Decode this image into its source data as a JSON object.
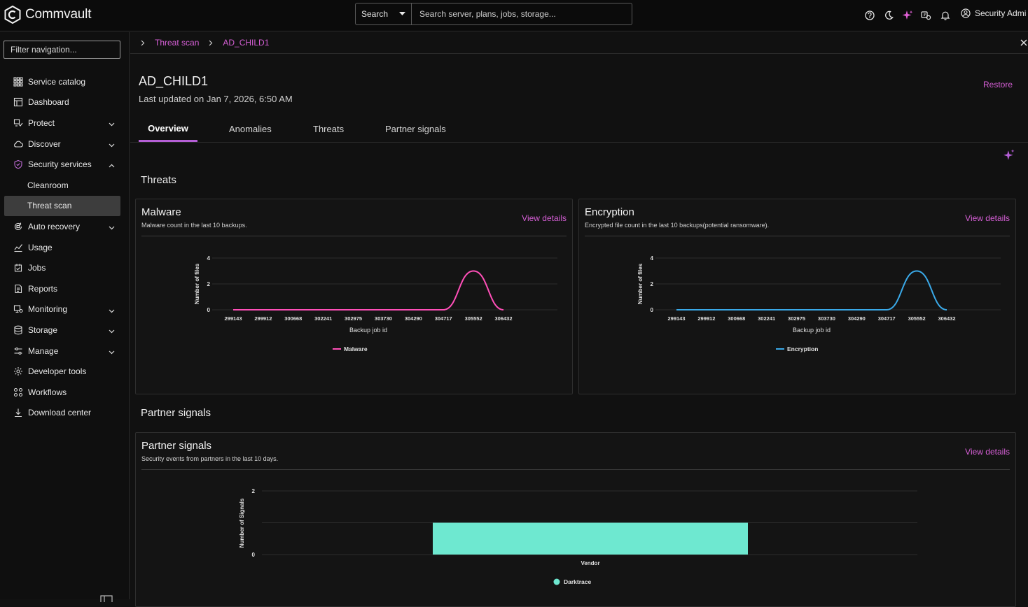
{
  "header": {
    "brand": "Commvault",
    "search_scope": "Search",
    "search_placeholder": "Search server, plans, jobs, storage...",
    "user_name": "Security Admi",
    "icons": [
      "help-icon",
      "moon-icon",
      "sparkle-icon",
      "ticket-icon",
      "bell-icon",
      "user-icon"
    ],
    "accent_color": "#d65fd6"
  },
  "sidebar": {
    "filter_placeholder": "Filter navigation...",
    "items": [
      {
        "label": "Service catalog",
        "icon": "grid-icon",
        "expandable": false
      },
      {
        "label": "Dashboard",
        "icon": "dashboard-icon",
        "expandable": false
      },
      {
        "label": "Protect",
        "icon": "protect-icon",
        "expandable": true
      },
      {
        "label": "Discover",
        "icon": "cloud-icon",
        "expandable": true
      },
      {
        "label": "Security services",
        "icon": "shield-icon",
        "expandable": true,
        "expanded": true
      },
      {
        "label": "Cleanroom",
        "sub": true
      },
      {
        "label": "Threat scan",
        "sub": true,
        "active": true
      },
      {
        "label": "Auto recovery",
        "icon": "recovery-icon",
        "expandable": true
      },
      {
        "label": "Usage",
        "icon": "chart-icon",
        "expandable": false
      },
      {
        "label": "Jobs",
        "icon": "jobs-icon",
        "expandable": false
      },
      {
        "label": "Reports",
        "icon": "reports-icon",
        "expandable": false
      },
      {
        "label": "Monitoring",
        "icon": "monitoring-icon",
        "expandable": true
      },
      {
        "label": "Storage",
        "icon": "storage-icon",
        "expandable": true
      },
      {
        "label": "Manage",
        "icon": "manage-icon",
        "expandable": true
      },
      {
        "label": "Developer tools",
        "icon": "gear-icon",
        "expandable": false
      },
      {
        "label": "Workflows",
        "icon": "workflow-icon",
        "expandable": false
      },
      {
        "label": "Download center",
        "icon": "download-icon",
        "expandable": false
      }
    ]
  },
  "breadcrumb": {
    "items": [
      "Threat scan",
      "AD_CHILD1"
    ]
  },
  "page": {
    "title": "AD_CHILD1",
    "subtitle": "Last updated on Jan 7, 2026, 6:50 AM",
    "restore_label": "Restore",
    "tabs": [
      "Overview",
      "Anomalies",
      "Threats",
      "Partner signals"
    ],
    "active_tab": "Overview"
  },
  "threats_section": {
    "title": "Threats"
  },
  "malware_card": {
    "title": "Malware",
    "subtitle": "Malware count in the last 10 backups.",
    "link": "View details"
  },
  "encryption_card": {
    "title": "Encryption",
    "subtitle": "Encrypted file count in the last 10 backups(potential ransomware).",
    "link": "View details"
  },
  "partner_section": {
    "title": "Partner signals"
  },
  "partner_card": {
    "title": "Partner signals",
    "subtitle": "Security events from partners in the last 10 days.",
    "link": "View details"
  },
  "chart_data": [
    {
      "type": "line",
      "id": "malware",
      "categories": [
        "299143",
        "299912",
        "300668",
        "302241",
        "302975",
        "303730",
        "304290",
        "304717",
        "305552",
        "306432"
      ],
      "series": [
        {
          "name": "Malware",
          "values": [
            0,
            0,
            0,
            0,
            0,
            0,
            0,
            0,
            3,
            0
          ],
          "color": "#ff4fb8"
        }
      ],
      "xlabel": "Backup job id",
      "ylabel": "Number of files",
      "ylim": [
        0,
        4
      ],
      "yticks": [
        0,
        2,
        4
      ],
      "grid": true,
      "legend": "bottom"
    },
    {
      "type": "line",
      "id": "encryption",
      "categories": [
        "299143",
        "299912",
        "300668",
        "302241",
        "302975",
        "303730",
        "304290",
        "304717",
        "305552",
        "306432"
      ],
      "series": [
        {
          "name": "Encryption",
          "values": [
            0,
            0,
            0,
            0,
            0,
            0,
            0,
            0,
            3,
            0
          ],
          "color": "#3aa9e8"
        }
      ],
      "xlabel": "Backup job id",
      "ylabel": "Number of files",
      "ylim": [
        0,
        4
      ],
      "yticks": [
        0,
        2,
        4
      ],
      "grid": true,
      "legend": "bottom"
    },
    {
      "type": "bar",
      "id": "partner",
      "categories": [
        "Vendor"
      ],
      "series": [
        {
          "name": "Darktrace",
          "values": [
            1
          ],
          "color": "#6ee8d0"
        }
      ],
      "xlabel": "",
      "ylabel": "Number of Signals",
      "ylim": [
        0,
        2
      ],
      "yticks": [
        0,
        2
      ],
      "grid": true,
      "legend": "bottom"
    }
  ]
}
